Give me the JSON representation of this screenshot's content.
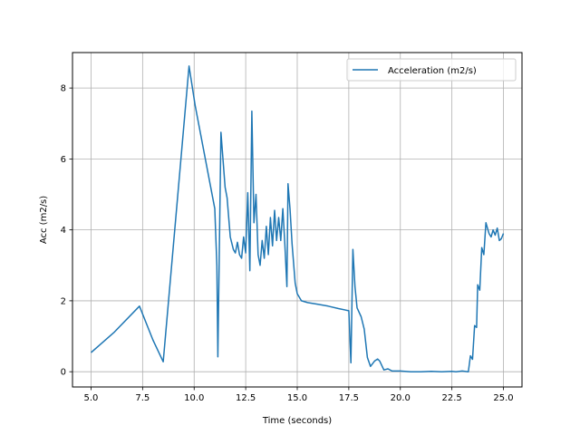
{
  "chart_data": {
    "type": "line",
    "title": "",
    "xlabel": "Time (seconds)",
    "ylabel": "Acc (m2/s)",
    "xlim": [
      4.1,
      25.9
    ],
    "ylim": [
      -0.43,
      9.0
    ],
    "xticks": [
      5.0,
      7.5,
      10.0,
      12.5,
      15.0,
      17.5,
      20.0,
      22.5,
      25.0
    ],
    "xtick_labels": [
      "5.0",
      "7.5",
      "10.0",
      "12.5",
      "15.0",
      "17.5",
      "20.0",
      "22.5",
      "25.0"
    ],
    "yticks": [
      0,
      2,
      4,
      6,
      8
    ],
    "ytick_labels": [
      "0",
      "2",
      "4",
      "6",
      "8"
    ],
    "grid": true,
    "legend_position": "top-right",
    "series": [
      {
        "name": "Acceleration (m2/s)",
        "color": "#1f77b4",
        "x": [
          5.0,
          6.1,
          7.35,
          8.0,
          8.5,
          9.75,
          10.05,
          11.0,
          11.1,
          11.15,
          11.3,
          11.5,
          11.6,
          11.75,
          11.9,
          12.0,
          12.1,
          12.2,
          12.3,
          12.4,
          12.5,
          12.6,
          12.7,
          12.8,
          12.9,
          13.0,
          13.1,
          13.2,
          13.3,
          13.4,
          13.5,
          13.6,
          13.7,
          13.8,
          13.9,
          14.0,
          14.1,
          14.2,
          14.3,
          14.4,
          14.5,
          14.55,
          14.65,
          14.75,
          14.9,
          15.0,
          15.2,
          15.5,
          16.0,
          16.5,
          17.0,
          17.5,
          17.6,
          17.7,
          17.8,
          17.9,
          18.1,
          18.25,
          18.4,
          18.55,
          18.75,
          18.9,
          19.0,
          19.2,
          19.4,
          19.6,
          20.0,
          20.5,
          21.0,
          21.5,
          22.0,
          22.5,
          22.7,
          23.0,
          23.3,
          23.4,
          23.5,
          23.6,
          23.7,
          23.75,
          23.85,
          23.95,
          24.05,
          24.15,
          24.3,
          24.4,
          24.5,
          24.6,
          24.7,
          24.8,
          24.9,
          25.0
        ],
        "y": [
          0.54,
          1.1,
          1.85,
          0.9,
          0.28,
          8.62,
          7.5,
          4.6,
          3.0,
          0.42,
          6.75,
          5.2,
          4.9,
          3.8,
          3.45,
          3.35,
          3.65,
          3.3,
          3.2,
          3.8,
          3.35,
          5.05,
          2.85,
          7.35,
          4.2,
          5.0,
          3.3,
          3.0,
          3.7,
          3.2,
          4.1,
          3.3,
          4.35,
          3.55,
          4.55,
          3.7,
          4.35,
          3.7,
          4.6,
          3.6,
          2.4,
          5.3,
          4.6,
          3.6,
          2.5,
          2.2,
          2.0,
          1.95,
          1.9,
          1.85,
          1.78,
          1.72,
          0.25,
          3.45,
          2.4,
          1.8,
          1.55,
          1.2,
          0.4,
          0.15,
          0.3,
          0.36,
          0.3,
          0.05,
          0.08,
          0.02,
          0.02,
          0.0,
          0.0,
          0.01,
          0.0,
          0.01,
          0.0,
          0.02,
          0.0,
          0.45,
          0.35,
          1.3,
          1.25,
          2.45,
          2.3,
          3.5,
          3.3,
          4.2,
          3.9,
          3.8,
          4.0,
          3.85,
          4.05,
          3.7,
          3.75,
          3.9
        ]
      }
    ]
  }
}
